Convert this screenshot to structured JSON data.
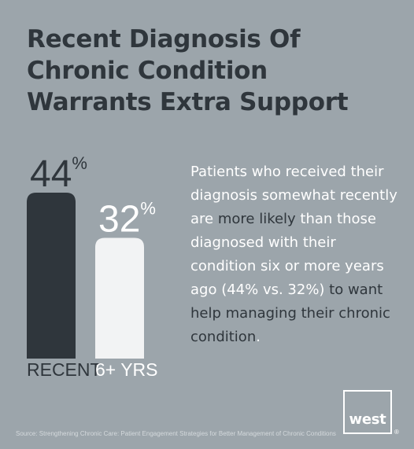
{
  "title_lines": [
    "Recent Diagnosis Of",
    "Chronic Condition",
    "Warrants Extra Support"
  ],
  "description": {
    "parts": [
      {
        "text": "Patients who received their diagnosis somewhat recently are ",
        "hl": false
      },
      {
        "text": "more likely",
        "hl": true
      },
      {
        "text": " than those diagnosed with their condition six or more years ago (44% vs. 32%) ",
        "hl": false
      },
      {
        "text": "to want help managing their chronic condition",
        "hl": true
      },
      {
        "text": ".",
        "hl": false
      }
    ]
  },
  "chart_data": {
    "type": "bar",
    "categories": [
      "RECENT",
      "6+ YRS"
    ],
    "values": [
      44,
      32
    ],
    "value_labels": [
      "44",
      "32"
    ],
    "unit": "%",
    "colors": [
      "#2f363c",
      "#f2f3f4"
    ],
    "ylim": [
      0,
      44
    ],
    "title": "",
    "xlabel": "",
    "ylabel": ""
  },
  "logo": {
    "text": "west",
    "registered": "®"
  },
  "source": "Source: Strengthening Chronic Care: Patient Engagement Strategies for Better Management of Chronic Conditions",
  "colors": {
    "background": "#9ca5ab",
    "dark": "#2f363c",
    "light": "#ffffff"
  }
}
